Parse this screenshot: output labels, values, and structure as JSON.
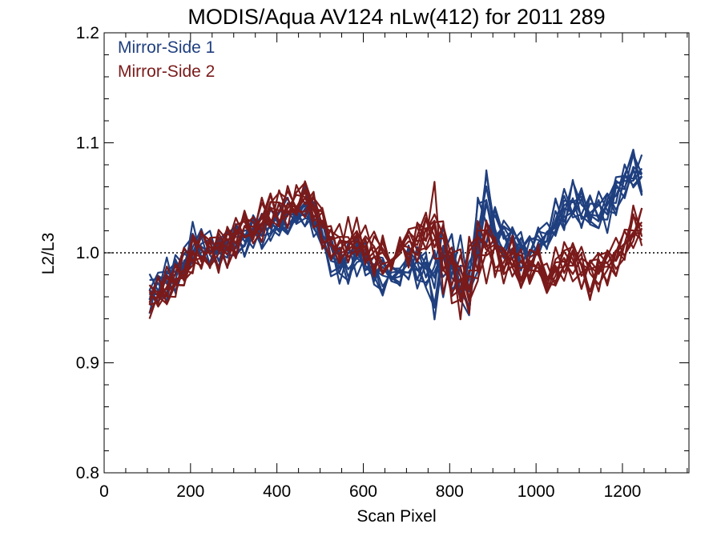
{
  "chart_data": {
    "type": "line",
    "title": "MODIS/Aqua AV124 nLw(412) for 2011 289",
    "xlabel": "Scan Pixel",
    "ylabel": "L2/L3",
    "xlim": [
      0,
      1354
    ],
    "ylim": [
      0.8,
      1.2
    ],
    "x_ticks": [
      0,
      200,
      400,
      600,
      800,
      1000,
      1200
    ],
    "x_tick_labels": [
      "0",
      "200",
      "400",
      "600",
      "800",
      "1000",
      "1200"
    ],
    "y_ticks": [
      0.8,
      0.9,
      1.0,
      1.1,
      1.2
    ],
    "y_tick_labels": [
      "0.8",
      "0.9",
      "1.0",
      "1.1",
      "1.2"
    ],
    "reference_line": {
      "y": 1.0,
      "style": "dotted"
    },
    "grid": false,
    "legend_position": "top-left",
    "x": [
      105,
      125,
      145,
      165,
      185,
      205,
      225,
      245,
      265,
      285,
      305,
      325,
      345,
      365,
      385,
      405,
      425,
      445,
      465,
      485,
      505,
      525,
      545,
      565,
      585,
      605,
      625,
      645,
      665,
      685,
      705,
      725,
      745,
      765,
      785,
      805,
      825,
      845,
      865,
      885,
      905,
      925,
      945,
      965,
      985,
      1005,
      1025,
      1045,
      1065,
      1085,
      1105,
      1125,
      1145,
      1165,
      1185,
      1205,
      1225,
      1245
    ],
    "series": [
      {
        "name": "Mirror-Side 1",
        "color": "#1f3f7f",
        "lines": 10,
        "values": [
          0.962,
          0.97,
          0.975,
          0.982,
          0.988,
          1.005,
          1.008,
          1.004,
          1.002,
          1.005,
          1.012,
          1.016,
          1.018,
          1.021,
          1.024,
          1.027,
          1.03,
          1.033,
          1.038,
          1.03,
          1.015,
          1.0,
          0.99,
          0.993,
          0.998,
          0.993,
          0.985,
          0.978,
          0.972,
          0.98,
          0.995,
          0.99,
          0.985,
          0.975,
          0.995,
          0.99,
          0.975,
          0.965,
          1.01,
          1.04,
          1.02,
          1.015,
          1.012,
          1.005,
          1.0,
          1.005,
          1.02,
          1.03,
          1.035,
          1.045,
          1.04,
          1.038,
          1.035,
          1.04,
          1.052,
          1.065,
          1.075,
          1.07
        ]
      },
      {
        "name": "Mirror-Side 2",
        "color": "#7a1a1a",
        "lines": 10,
        "values": [
          0.955,
          0.962,
          0.968,
          0.975,
          0.982,
          0.998,
          1.002,
          1.003,
          1.004,
          1.008,
          1.015,
          1.02,
          1.025,
          1.03,
          1.035,
          1.038,
          1.042,
          1.045,
          1.05,
          1.04,
          1.025,
          1.012,
          1.005,
          1.01,
          1.012,
          1.005,
          0.998,
          0.995,
          0.992,
          1.0,
          1.01,
          1.015,
          1.02,
          1.025,
          0.995,
          0.985,
          0.97,
          0.975,
          1.0,
          1.01,
          1.0,
          0.99,
          0.995,
          0.985,
          0.99,
          0.985,
          0.98,
          0.985,
          0.99,
          0.995,
          0.985,
          0.98,
          0.985,
          0.99,
          0.995,
          1.005,
          1.02,
          1.025
        ]
      }
    ]
  }
}
